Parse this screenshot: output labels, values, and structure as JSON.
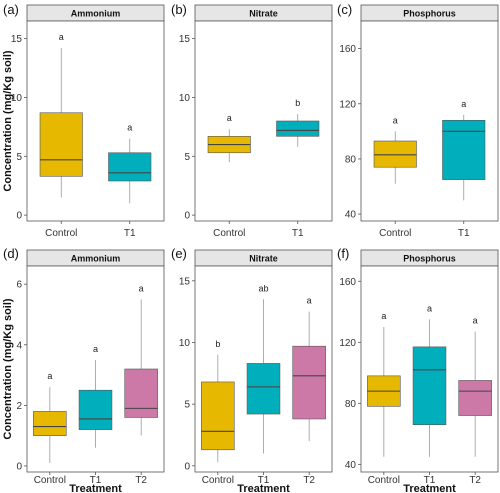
{
  "chart_data": [
    {
      "type": "box",
      "panel_letter": "(a)",
      "title": "Ammonium",
      "ylabel": "Concentration (mg/Kg soil)",
      "xlabel": "",
      "ylim": [
        -0.5,
        16.5
      ],
      "yticks": [
        0,
        5,
        10,
        15
      ],
      "categories": [
        "Control",
        "T1"
      ],
      "boxes": [
        {
          "min": 1.5,
          "q1": 3.3,
          "median": 4.7,
          "q3": 8.7,
          "max": 14.2,
          "color": "#E7B800",
          "sig": "a"
        },
        {
          "min": 1.0,
          "q1": 2.9,
          "median": 3.6,
          "q3": 5.3,
          "max": 6.5,
          "color": "#00AFBB",
          "sig": "a"
        }
      ]
    },
    {
      "type": "box",
      "panel_letter": "(b)",
      "title": "Nitrate",
      "ylabel": "",
      "xlabel": "",
      "ylim": [
        -0.5,
        16.5
      ],
      "yticks": [
        0,
        5,
        10,
        15
      ],
      "categories": [
        "Control",
        "T1"
      ],
      "boxes": [
        {
          "min": 4.5,
          "q1": 5.3,
          "median": 6.0,
          "q3": 6.7,
          "max": 7.3,
          "color": "#E7B800",
          "sig": "a"
        },
        {
          "min": 5.8,
          "q1": 6.7,
          "median": 7.2,
          "q3": 8.0,
          "max": 8.6,
          "color": "#00AFBB",
          "sig": "b"
        }
      ]
    },
    {
      "type": "box",
      "panel_letter": "(c)",
      "title": "Phosphorus",
      "ylabel": "",
      "xlabel": "",
      "ylim": [
        35,
        180
      ],
      "yticks": [
        40,
        80,
        120,
        160
      ],
      "categories": [
        "Control",
        "T1"
      ],
      "boxes": [
        {
          "min": 62,
          "q1": 74,
          "median": 83,
          "q3": 93,
          "max": 100,
          "color": "#E7B800",
          "sig": "a"
        },
        {
          "min": 50,
          "q1": 65,
          "median": 100,
          "q3": 108,
          "max": 112,
          "color": "#00AFBB",
          "sig": "a"
        }
      ]
    },
    {
      "type": "box",
      "panel_letter": "(d)",
      "title": "Ammonium",
      "ylabel": "Concentration (mg/Kg soil)",
      "xlabel": "Treatment",
      "ylim": [
        -0.2,
        6.6
      ],
      "yticks": [
        0,
        2,
        4,
        6
      ],
      "categories": [
        "Control",
        "T1",
        "T2"
      ],
      "boxes": [
        {
          "min": 0.1,
          "q1": 1.0,
          "median": 1.3,
          "q3": 1.8,
          "max": 2.6,
          "color": "#E7B800",
          "sig": "a"
        },
        {
          "min": 0.6,
          "q1": 1.2,
          "median": 1.55,
          "q3": 2.5,
          "max": 3.5,
          "color": "#00AFBB",
          "sig": "a"
        },
        {
          "min": 1.0,
          "q1": 1.6,
          "median": 1.9,
          "q3": 3.2,
          "max": 5.5,
          "color": "#CC79A7",
          "sig": "a"
        }
      ]
    },
    {
      "type": "box",
      "panel_letter": "(e)",
      "title": "Nitrate",
      "ylabel": "",
      "xlabel": "Treatment",
      "ylim": [
        -0.5,
        16.2
      ],
      "yticks": [
        0,
        5,
        10,
        15
      ],
      "categories": [
        "Control",
        "T1",
        "T2"
      ],
      "boxes": [
        {
          "min": 0.3,
          "q1": 1.3,
          "median": 2.8,
          "q3": 6.8,
          "max": 9.0,
          "color": "#E7B800",
          "sig": "b"
        },
        {
          "min": 1.0,
          "q1": 4.2,
          "median": 6.4,
          "q3": 8.3,
          "max": 13.5,
          "color": "#00AFBB",
          "sig": "ab"
        },
        {
          "min": 2.0,
          "q1": 3.8,
          "median": 7.3,
          "q3": 9.7,
          "max": 12.5,
          "color": "#CC79A7",
          "sig": "a"
        }
      ]
    },
    {
      "type": "box",
      "panel_letter": "(f)",
      "title": "Phosphorus",
      "ylabel": "",
      "xlabel": "Treatment",
      "ylim": [
        35,
        170
      ],
      "yticks": [
        40,
        80,
        120,
        160
      ],
      "categories": [
        "Control",
        "T1",
        "T2"
      ],
      "boxes": [
        {
          "min": 45,
          "q1": 78,
          "median": 88,
          "q3": 98,
          "max": 130,
          "color": "#E7B800",
          "sig": "a"
        },
        {
          "min": 45,
          "q1": 66,
          "median": 102,
          "q3": 117,
          "max": 135,
          "color": "#00AFBB",
          "sig": "a"
        },
        {
          "min": 45,
          "q1": 72,
          "median": 88,
          "q3": 95,
          "max": 127,
          "color": "#CC79A7",
          "sig": "a"
        }
      ]
    }
  ]
}
